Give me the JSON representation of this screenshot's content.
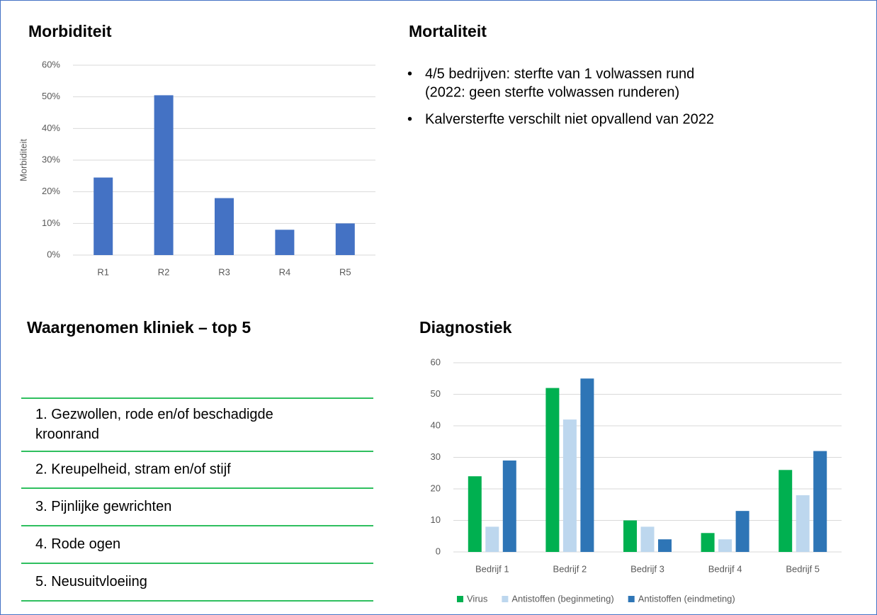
{
  "chart_data": [
    {
      "type": "bar",
      "title": "Morbiditeit",
      "ylabel": "Morbiditeit",
      "categories": [
        "R1",
        "R2",
        "R3",
        "R4",
        "R5"
      ],
      "values": [
        24.5,
        50.5,
        18,
        8,
        10
      ],
      "color": "#4472c4",
      "ylim": [
        0,
        60
      ],
      "yticks": [
        {
          "value": 0,
          "label": "0%"
        },
        {
          "value": 10,
          "label": "10%"
        },
        {
          "value": 20,
          "label": "20%"
        },
        {
          "value": 30,
          "label": "30%"
        },
        {
          "value": 40,
          "label": "40%"
        },
        {
          "value": 50,
          "label": "50%"
        },
        {
          "value": 60,
          "label": "60%"
        }
      ],
      "grid": true
    },
    {
      "type": "bar",
      "title": "Diagnostiek",
      "categories": [
        "Bedrijf 1",
        "Bedrijf 2",
        "Bedrijf 3",
        "Bedrijf 4",
        "Bedrijf 5"
      ],
      "series": [
        {
          "name": "Virus",
          "color": "#00b050",
          "values": [
            24,
            52,
            10,
            6,
            26
          ]
        },
        {
          "name": "Antistoffen (beginmeting)",
          "color": "#bdd7ee",
          "values": [
            8,
            42,
            8,
            4,
            18
          ]
        },
        {
          "name": "Antistoffen (eindmeting)",
          "color": "#2e75b6",
          "values": [
            29,
            55,
            4,
            13,
            32
          ]
        }
      ],
      "ylim": [
        0,
        60
      ],
      "yticks": [
        0,
        10,
        20,
        30,
        40,
        50,
        60
      ],
      "grid": true,
      "legend": "bottom"
    }
  ],
  "mortaliteit": {
    "title": "Mortaliteit",
    "bullets": [
      [
        "4/5 bedrijven: sterfte van 1 volwassen rund",
        "(2022: geen sterfte volwassen runderen)"
      ],
      [
        "Kalversterfte verschilt niet opvallend van 2022"
      ]
    ]
  },
  "kliniek": {
    "title": "Waargenomen kliniek – top 5",
    "items": [
      [
        "1. Gezwollen, rode en/of beschadigde",
        "kroonrand"
      ],
      [
        "2. Kreupelheid, stram en/of stijf"
      ],
      [
        "3. Pijnlijke gewrichten"
      ],
      [
        "4. Rode ogen"
      ],
      [
        "5. Neusuitvloeiing"
      ]
    ]
  }
}
